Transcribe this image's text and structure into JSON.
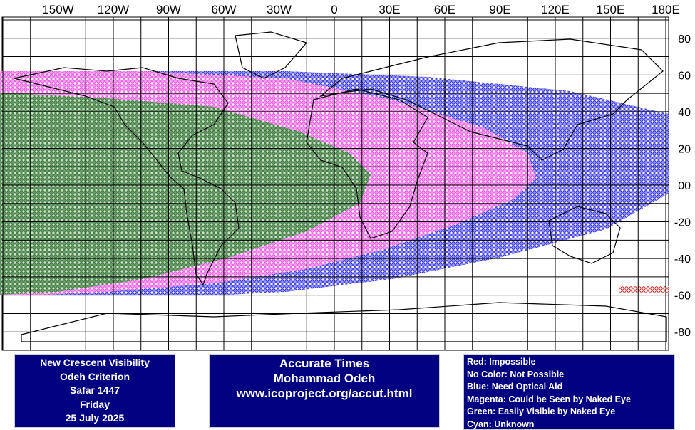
{
  "map": {
    "longitude_labels": [
      "150W",
      "120W",
      "90W",
      "60W",
      "30W",
      "0",
      "30E",
      "60E",
      "90E",
      "120E",
      "150E",
      "180E"
    ],
    "latitude_labels": [
      "80",
      "60",
      "40",
      "20",
      "00",
      "-20",
      "-40",
      "-60",
      "-80"
    ]
  },
  "panels": {
    "left": [
      "New Crescent Visibility",
      "Odeh Criterion",
      "Safar 1447",
      "Friday",
      "25 July 2025"
    ],
    "center": [
      "Accurate Times",
      "Mohammad Odeh",
      "www.icoproject.org/accut.html"
    ],
    "legend": [
      "Red: Impossible",
      "No Color: Not Possible",
      "Blue: Need Optical Aid",
      "Magenta: Could be Seen by Naked Eye",
      "Green: Easily Visible by Naked Eye",
      "Cyan: Unknown"
    ]
  }
}
